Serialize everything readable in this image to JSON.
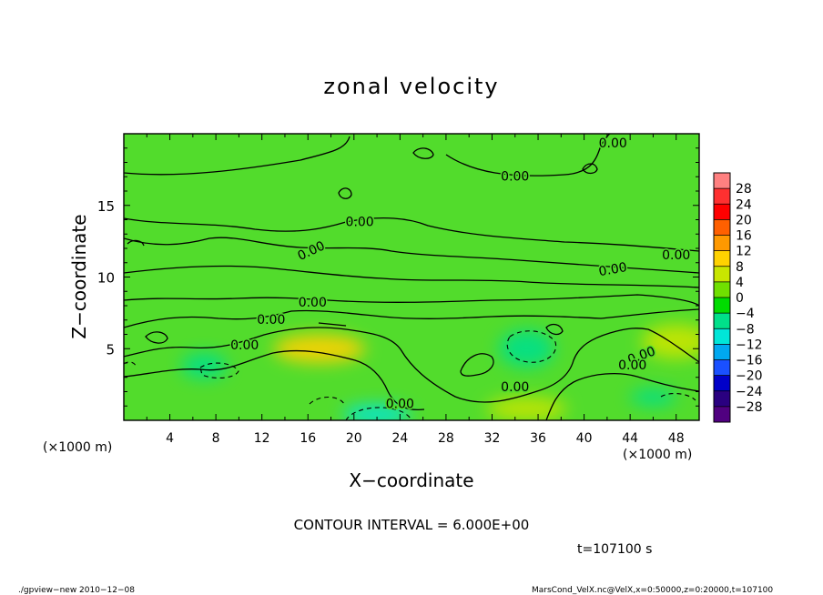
{
  "chart_data": {
    "type": "heatmap",
    "title": "zonal velocity",
    "xlabel": "X−coordinate",
    "ylabel": "Z−coordinate",
    "xunit_left": "(×1000 m)",
    "xunit_right": "(×1000 m)",
    "xlim": [
      0,
      50
    ],
    "ylim": [
      0,
      20
    ],
    "xticks": [
      4,
      8,
      12,
      16,
      20,
      24,
      28,
      32,
      36,
      40,
      44,
      48
    ],
    "yticks": [
      5,
      10,
      15
    ],
    "contour_interval_text": "CONTOUR INTERVAL = 6.000E+00",
    "time_text": "t=107100 s",
    "footer_left": "./gpview−new   2010−12−08",
    "footer_right": "MarsCond_VelX.nc@VelX,x=0:50000,z=0:20000,t=107100",
    "colorbar": {
      "levels": [
        28,
        24,
        20,
        16,
        12,
        8,
        4,
        0,
        -4,
        -8,
        -12,
        -16,
        -20,
        -24,
        -28
      ],
      "labels": [
        "28",
        "24",
        "20",
        "16",
        "12",
        "8",
        "4",
        "0",
        "−4",
        "−8",
        "−12",
        "−16",
        "−20",
        "−24",
        "−28"
      ],
      "colors": [
        "#ff8080",
        "#ff3030",
        "#ff0000",
        "#ff6000",
        "#ff9900",
        "#ffd200",
        "#c8e600",
        "#70e000",
        "#00dc00",
        "#00e08a",
        "#00e6d8",
        "#00a8f0",
        "#1a50ff",
        "#0000c8",
        "#2a0080",
        "#500080"
      ]
    },
    "contour_labels": [
      {
        "text": "0.00",
        "x": 42.5,
        "z": 19.3,
        "angle": 0
      },
      {
        "text": "0.00",
        "x": 34.0,
        "z": 17.0,
        "angle": 0
      },
      {
        "text": "0.00",
        "x": 20.5,
        "z": 13.8,
        "angle": 0
      },
      {
        "text": "0.00",
        "x": 16.3,
        "z": 11.8,
        "angle": 25
      },
      {
        "text": "0.00",
        "x": 48.0,
        "z": 11.5,
        "angle": 0
      },
      {
        "text": "0.00",
        "x": 42.5,
        "z": 10.5,
        "angle": 10
      },
      {
        "text": "0.00",
        "x": 16.4,
        "z": 8.2,
        "angle": 0
      },
      {
        "text": "0.00",
        "x": 12.8,
        "z": 7.0,
        "angle": 0
      },
      {
        "text": "0.00",
        "x": 10.5,
        "z": 5.2,
        "angle": 0
      },
      {
        "text": "0.00",
        "x": 45.0,
        "z": 4.5,
        "angle": 20
      },
      {
        "text": "0.00",
        "x": 44.2,
        "z": 3.8,
        "angle": 0
      },
      {
        "text": "0.00",
        "x": 34.0,
        "z": 2.3,
        "angle": 0
      },
      {
        "text": "0.00",
        "x": 24.0,
        "z": 1.1,
        "angle": 0
      }
    ],
    "regions": [
      {
        "value": 8,
        "x": 17,
        "z": 5.0,
        "rx": 4.0,
        "rz": 1.0,
        "note": "positive core"
      },
      {
        "value": 6,
        "x": 48,
        "z": 5.5,
        "rx": 3.0,
        "rz": 1.2
      },
      {
        "value": -8,
        "x": 35,
        "z": 5.0,
        "rx": 2.4,
        "rz": 1.3
      },
      {
        "value": -6,
        "x": 7,
        "z": 3.8,
        "rx": 2.0,
        "rz": 0.9
      },
      {
        "value": -12,
        "x": 22,
        "z": 0.4,
        "rx": 3.0,
        "rz": 0.7
      },
      {
        "value": -6,
        "x": 46,
        "z": 1.6,
        "rx": 2.0,
        "rz": 0.6
      },
      {
        "value": 6,
        "x": 35,
        "z": 0.8,
        "rx": 3.5,
        "rz": 0.8
      }
    ]
  }
}
